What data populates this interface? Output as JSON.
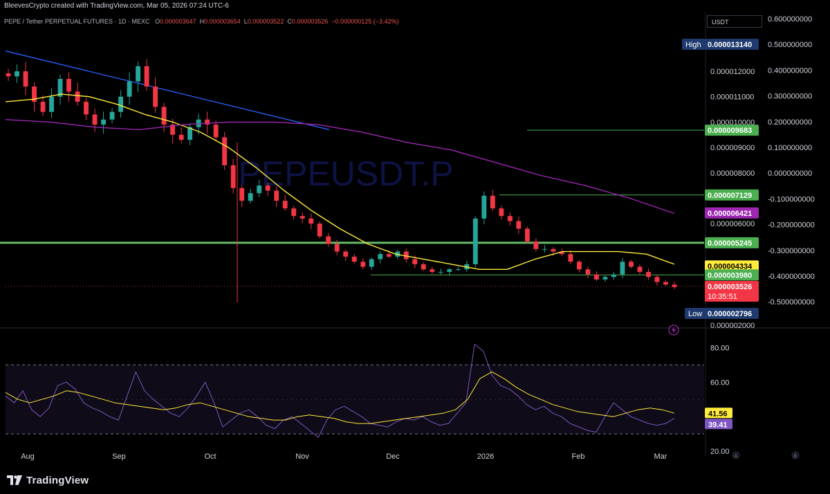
{
  "header": {
    "attribution": "BleevesCrypto created with TradingView.com, Mar 05, 2026 07:24 UTC-6",
    "symbol_line": "PEPE / Tether PERPETUAL FUTURES · 1D · MEXC",
    "o_label": "O",
    "o_value": "0.000003647",
    "h_label": "H",
    "h_value": "0.000003654",
    "l_label": "L",
    "l_value": "0.000003522",
    "c_label": "C",
    "c_value": "0.000003526",
    "change": "−0.000000125 (−3.42%)"
  },
  "currency_label": "USDT",
  "watermark": "PEPEUSDT.P",
  "brand": "TradingView",
  "colors": {
    "up": "#26a69a",
    "down": "#f23645",
    "ma_yellow": "#ffeb3b",
    "ma_purple": "#9c27b0",
    "trendline": "#2962ff",
    "level_green": "#4caf50",
    "rsi_line": "#7e57c2",
    "rsi_ma": "#ffeb3b"
  },
  "chart_data": [
    {
      "type": "candlestick",
      "x_labels": [
        "Aug",
        "Sep",
        "Oct",
        "Nov",
        "Dec",
        "2026",
        "Feb",
        "Mar"
      ],
      "price_axis_left": [
        "0.000012000",
        "0.000011000",
        "0.000010000",
        "0.000009000",
        "0.000008000",
        "0.000006000",
        "0.000002000"
      ],
      "pct_axis_right": [
        "0.600000000",
        "0.500000000",
        "0.400000000",
        "0.300000000",
        "0.200000000",
        "0.100000000",
        "0.000000000",
        "-0.100000000",
        "-0.200000000",
        "-0.300000000",
        "-0.400000000",
        "-0.500000000"
      ],
      "ylim": [
        2e-06,
        1.35e-05
      ],
      "series_close_approx": [
        1.18e-05,
        1.2e-05,
        1.14e-05,
        1.08e-05,
        1.04e-05,
        1.1e-05,
        1.17e-05,
        1.12e-05,
        1.08e-05,
        1.03e-05,
        9.9e-06,
        1.01e-05,
        1.04e-05,
        1.1e-05,
        1.16e-05,
        1.22e-05,
        1.14e-05,
        1.06e-05,
        9.9e-06,
        9.5e-06,
        9.3e-06,
        9.8e-06,
        1.01e-05,
        9.9e-06,
        9.4e-06,
        8.3e-06,
        7.4e-06,
        6.9e-06,
        7.2e-06,
        7.5e-06,
        7.3e-06,
        6.9e-06,
        6.6e-06,
        6.3e-06,
        6.2e-06,
        6e-06,
        5.5e-06,
        5.2e-06,
        4.9e-06,
        4.7e-06,
        4.5e-06,
        4.3e-06,
        4.6e-06,
        4.8e-06,
        4.7e-06,
        4.9e-06,
        4.6e-06,
        4.4e-06,
        4.2e-06,
        4.1e-06,
        4.1e-06,
        4.2e-06,
        4.2e-06,
        4.4e-06,
        6.2e-06,
        7.1e-06,
        6.6e-06,
        6.3e-06,
        6.1e-06,
        5.8e-06,
        5.3e-06,
        5e-06,
        5e-06,
        4.9e-06,
        4.8e-06,
        4.5e-06,
        4.2e-06,
        4e-06,
        3.8e-06,
        3.9e-06,
        4e-06,
        4.5e-06,
        4.3e-06,
        4.1e-06,
        3.9e-06,
        3.7e-06,
        3.6e-06,
        3.5e-06
      ],
      "ma_yellow_approx": [
        1.08e-05,
        1.09e-05,
        1.11e-05,
        1.1e-05,
        1.07e-05,
        1.03e-05,
        1e-05,
        9.6e-06,
        9e-06,
        8.2e-06,
        7.3e-06,
        6.5e-06,
        5.8e-06,
        5.2e-06,
        4.8e-06,
        4.6e-06,
        4.4e-06,
        4.2e-06,
        4.2e-06,
        4.6e-06,
        4.9e-06,
        4.9e-06,
        4.9e-06,
        4.8e-06,
        4.4e-06
      ],
      "ma_purple_approx": [
        1.01e-05,
        1e-05,
        9.8e-06,
        9.7e-06,
        9.9e-06,
        1e-05,
        1e-05,
        9.9e-06,
        9.6e-06,
        9.2e-06,
        8.9e-06,
        8.4e-06,
        7.9e-06,
        7.5e-06,
        7e-06,
        6.4e-06
      ],
      "levels": {
        "high": {
          "label": "High",
          "value": "0.000013140"
        },
        "low": {
          "label": "Low",
          "value": "0.000002796"
        },
        "resistance_1": "0.000009683",
        "resistance_2": "0.000007129",
        "ma_purple_value": "0.000006421",
        "support_major": "0.000005245",
        "ma_yellow_value": "0.000004334",
        "support_minor": "0.000003980",
        "last_price": "0.000003526",
        "countdown": "10:35:51"
      }
    },
    {
      "type": "line",
      "name": "RSI",
      "ylim": [
        20,
        85
      ],
      "y_ticks": [
        "80.00",
        "60.00",
        "20.00"
      ],
      "band": [
        30,
        70
      ],
      "rsi_ma_value": "41.56",
      "rsi_value": "39.41",
      "rsi_approx": [
        52,
        48,
        55,
        44,
        40,
        45,
        58,
        60,
        56,
        48,
        45,
        43,
        40,
        38,
        52,
        66,
        55,
        50,
        46,
        42,
        40,
        45,
        52,
        60,
        48,
        34,
        38,
        42,
        44,
        40,
        35,
        33,
        38,
        40,
        36,
        32,
        28,
        38,
        44,
        46,
        43,
        40,
        36,
        35,
        34,
        37,
        39,
        38,
        40,
        37,
        35,
        36,
        42,
        48,
        82,
        78,
        64,
        58,
        56,
        52,
        47,
        44,
        46,
        42,
        40,
        36,
        34,
        32,
        31,
        40,
        48,
        44,
        40,
        38,
        36,
        35,
        36,
        39
      ],
      "rsi_ma_approx": [
        54,
        50,
        48,
        50,
        52,
        55,
        54,
        52,
        50,
        48,
        47,
        46,
        45,
        44,
        45,
        47,
        48,
        46,
        44,
        42,
        40,
        39,
        38,
        38,
        40,
        41,
        40,
        39,
        37,
        36,
        36,
        37,
        38,
        39,
        40,
        41,
        42,
        44,
        50,
        62,
        66,
        62,
        57,
        53,
        50,
        47,
        45,
        43,
        42,
        41,
        40,
        42,
        44,
        45,
        44,
        42
      ]
    }
  ],
  "rsi_axis_extra": [
    "A",
    "B"
  ]
}
